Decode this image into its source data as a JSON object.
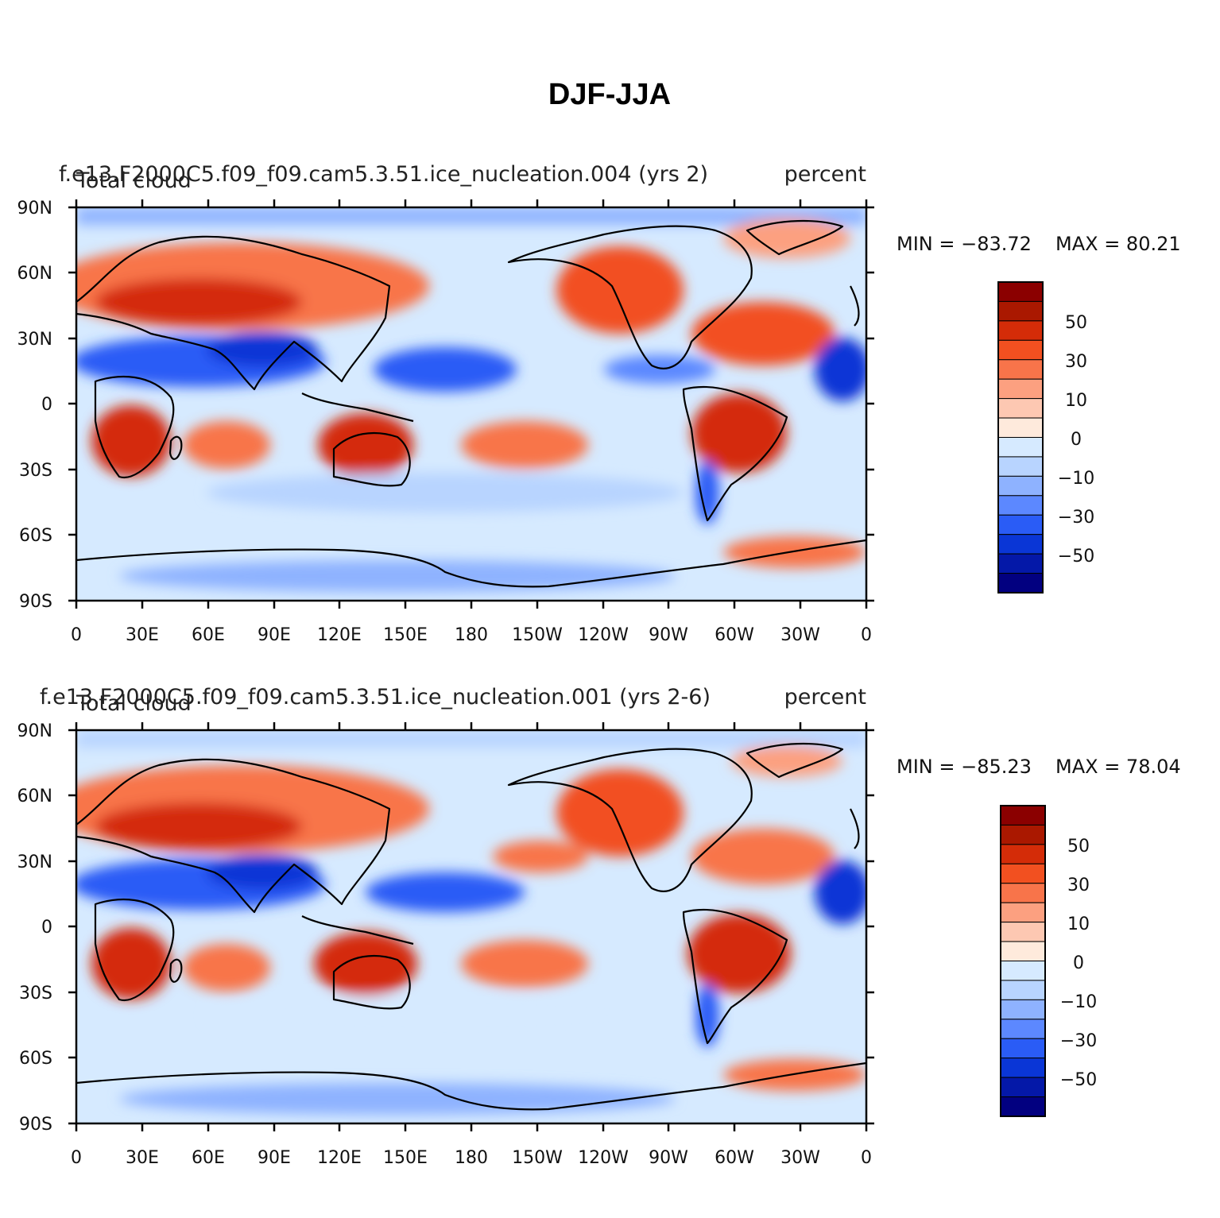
{
  "figure": {
    "title": "DJF-JJA"
  },
  "panels": [
    {
      "case_name": "f.e13.F2000C5.f09_f09.cam5.3.51.ice_nucleation.004 (yrs 2)",
      "variable": "Total cloud",
      "units": "percent",
      "min_label": "MIN = −83.72",
      "max_label": "MAX = 80.21"
    },
    {
      "case_name": "f.e13.F2000C5.f09_f09.cam5.3.51.ice_nucleation.001 (yrs 2-6)",
      "variable": "Total cloud",
      "units": "percent",
      "min_label": "MIN = −85.23",
      "max_label": "MAX = 78.04"
    }
  ],
  "axes": {
    "lat_labels": [
      "90N",
      "60N",
      "30N",
      "0",
      "30S",
      "60S",
      "90S"
    ],
    "lon_labels": [
      "0",
      "30E",
      "60E",
      "90E",
      "120E",
      "150E",
      "180",
      "150W",
      "120W",
      "90W",
      "60W",
      "30W",
      "0"
    ]
  },
  "colorbar": {
    "colors": [
      "#8b0000",
      "#aa1800",
      "#d42c08",
      "#f25020",
      "#f8744a",
      "#fca080",
      "#fdc8b2",
      "#feeadc",
      "#d6eaff",
      "#b8d4ff",
      "#8eb2ff",
      "#5c88ff",
      "#2a5cf6",
      "#0a36d6",
      "#0418a8",
      "#020080"
    ],
    "tick_labels": [
      "50",
      "30",
      "10",
      "0",
      "−10",
      "−30",
      "−50"
    ]
  },
  "colors": {
    "positive": "#d42c08",
    "negative": "#0a36d6",
    "coastline": "#000000"
  }
}
